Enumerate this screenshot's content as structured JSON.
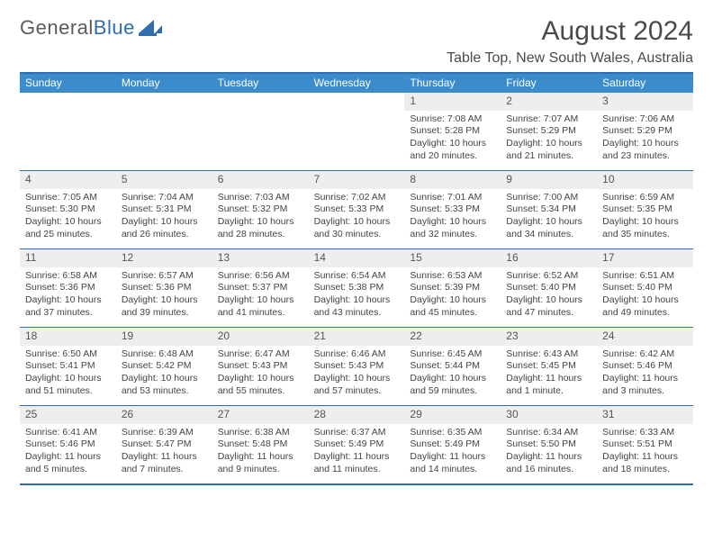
{
  "brand": {
    "general": "General",
    "blue": "Blue"
  },
  "title": "August 2024",
  "location": "Table Top, New South Wales, Australia",
  "colors": {
    "headerBar": "#3c8ccb",
    "accentBorder": "#2f6fb0",
    "dayNumBg": "#eeeeee",
    "text": "#444444",
    "pageBg": "#ffffff"
  },
  "daysOfWeek": [
    "Sunday",
    "Monday",
    "Tuesday",
    "Wednesday",
    "Thursday",
    "Friday",
    "Saturday"
  ],
  "weeks": [
    [
      {
        "n": "",
        "sr": "",
        "ss": "",
        "dl1": "",
        "dl2": "",
        "empty": true
      },
      {
        "n": "",
        "sr": "",
        "ss": "",
        "dl1": "",
        "dl2": "",
        "empty": true
      },
      {
        "n": "",
        "sr": "",
        "ss": "",
        "dl1": "",
        "dl2": "",
        "empty": true
      },
      {
        "n": "",
        "sr": "",
        "ss": "",
        "dl1": "",
        "dl2": "",
        "empty": true
      },
      {
        "n": "1",
        "sr": "Sunrise: 7:08 AM",
        "ss": "Sunset: 5:28 PM",
        "dl1": "Daylight: 10 hours",
        "dl2": "and 20 minutes."
      },
      {
        "n": "2",
        "sr": "Sunrise: 7:07 AM",
        "ss": "Sunset: 5:29 PM",
        "dl1": "Daylight: 10 hours",
        "dl2": "and 21 minutes."
      },
      {
        "n": "3",
        "sr": "Sunrise: 7:06 AM",
        "ss": "Sunset: 5:29 PM",
        "dl1": "Daylight: 10 hours",
        "dl2": "and 23 minutes."
      }
    ],
    [
      {
        "n": "4",
        "sr": "Sunrise: 7:05 AM",
        "ss": "Sunset: 5:30 PM",
        "dl1": "Daylight: 10 hours",
        "dl2": "and 25 minutes."
      },
      {
        "n": "5",
        "sr": "Sunrise: 7:04 AM",
        "ss": "Sunset: 5:31 PM",
        "dl1": "Daylight: 10 hours",
        "dl2": "and 26 minutes."
      },
      {
        "n": "6",
        "sr": "Sunrise: 7:03 AM",
        "ss": "Sunset: 5:32 PM",
        "dl1": "Daylight: 10 hours",
        "dl2": "and 28 minutes."
      },
      {
        "n": "7",
        "sr": "Sunrise: 7:02 AM",
        "ss": "Sunset: 5:33 PM",
        "dl1": "Daylight: 10 hours",
        "dl2": "and 30 minutes."
      },
      {
        "n": "8",
        "sr": "Sunrise: 7:01 AM",
        "ss": "Sunset: 5:33 PM",
        "dl1": "Daylight: 10 hours",
        "dl2": "and 32 minutes."
      },
      {
        "n": "9",
        "sr": "Sunrise: 7:00 AM",
        "ss": "Sunset: 5:34 PM",
        "dl1": "Daylight: 10 hours",
        "dl2": "and 34 minutes."
      },
      {
        "n": "10",
        "sr": "Sunrise: 6:59 AM",
        "ss": "Sunset: 5:35 PM",
        "dl1": "Daylight: 10 hours",
        "dl2": "and 35 minutes."
      }
    ],
    [
      {
        "n": "11",
        "sr": "Sunrise: 6:58 AM",
        "ss": "Sunset: 5:36 PM",
        "dl1": "Daylight: 10 hours",
        "dl2": "and 37 minutes."
      },
      {
        "n": "12",
        "sr": "Sunrise: 6:57 AM",
        "ss": "Sunset: 5:36 PM",
        "dl1": "Daylight: 10 hours",
        "dl2": "and 39 minutes."
      },
      {
        "n": "13",
        "sr": "Sunrise: 6:56 AM",
        "ss": "Sunset: 5:37 PM",
        "dl1": "Daylight: 10 hours",
        "dl2": "and 41 minutes."
      },
      {
        "n": "14",
        "sr": "Sunrise: 6:54 AM",
        "ss": "Sunset: 5:38 PM",
        "dl1": "Daylight: 10 hours",
        "dl2": "and 43 minutes."
      },
      {
        "n": "15",
        "sr": "Sunrise: 6:53 AM",
        "ss": "Sunset: 5:39 PM",
        "dl1": "Daylight: 10 hours",
        "dl2": "and 45 minutes."
      },
      {
        "n": "16",
        "sr": "Sunrise: 6:52 AM",
        "ss": "Sunset: 5:40 PM",
        "dl1": "Daylight: 10 hours",
        "dl2": "and 47 minutes."
      },
      {
        "n": "17",
        "sr": "Sunrise: 6:51 AM",
        "ss": "Sunset: 5:40 PM",
        "dl1": "Daylight: 10 hours",
        "dl2": "and 49 minutes."
      }
    ],
    [
      {
        "n": "18",
        "sr": "Sunrise: 6:50 AM",
        "ss": "Sunset: 5:41 PM",
        "dl1": "Daylight: 10 hours",
        "dl2": "and 51 minutes."
      },
      {
        "n": "19",
        "sr": "Sunrise: 6:48 AM",
        "ss": "Sunset: 5:42 PM",
        "dl1": "Daylight: 10 hours",
        "dl2": "and 53 minutes."
      },
      {
        "n": "20",
        "sr": "Sunrise: 6:47 AM",
        "ss": "Sunset: 5:43 PM",
        "dl1": "Daylight: 10 hours",
        "dl2": "and 55 minutes."
      },
      {
        "n": "21",
        "sr": "Sunrise: 6:46 AM",
        "ss": "Sunset: 5:43 PM",
        "dl1": "Daylight: 10 hours",
        "dl2": "and 57 minutes."
      },
      {
        "n": "22",
        "sr": "Sunrise: 6:45 AM",
        "ss": "Sunset: 5:44 PM",
        "dl1": "Daylight: 10 hours",
        "dl2": "and 59 minutes."
      },
      {
        "n": "23",
        "sr": "Sunrise: 6:43 AM",
        "ss": "Sunset: 5:45 PM",
        "dl1": "Daylight: 11 hours",
        "dl2": "and 1 minute."
      },
      {
        "n": "24",
        "sr": "Sunrise: 6:42 AM",
        "ss": "Sunset: 5:46 PM",
        "dl1": "Daylight: 11 hours",
        "dl2": "and 3 minutes."
      }
    ],
    [
      {
        "n": "25",
        "sr": "Sunrise: 6:41 AM",
        "ss": "Sunset: 5:46 PM",
        "dl1": "Daylight: 11 hours",
        "dl2": "and 5 minutes."
      },
      {
        "n": "26",
        "sr": "Sunrise: 6:39 AM",
        "ss": "Sunset: 5:47 PM",
        "dl1": "Daylight: 11 hours",
        "dl2": "and 7 minutes."
      },
      {
        "n": "27",
        "sr": "Sunrise: 6:38 AM",
        "ss": "Sunset: 5:48 PM",
        "dl1": "Daylight: 11 hours",
        "dl2": "and 9 minutes."
      },
      {
        "n": "28",
        "sr": "Sunrise: 6:37 AM",
        "ss": "Sunset: 5:49 PM",
        "dl1": "Daylight: 11 hours",
        "dl2": "and 11 minutes."
      },
      {
        "n": "29",
        "sr": "Sunrise: 6:35 AM",
        "ss": "Sunset: 5:49 PM",
        "dl1": "Daylight: 11 hours",
        "dl2": "and 14 minutes."
      },
      {
        "n": "30",
        "sr": "Sunrise: 6:34 AM",
        "ss": "Sunset: 5:50 PM",
        "dl1": "Daylight: 11 hours",
        "dl2": "and 16 minutes."
      },
      {
        "n": "31",
        "sr": "Sunrise: 6:33 AM",
        "ss": "Sunset: 5:51 PM",
        "dl1": "Daylight: 11 hours",
        "dl2": "and 18 minutes."
      }
    ]
  ]
}
